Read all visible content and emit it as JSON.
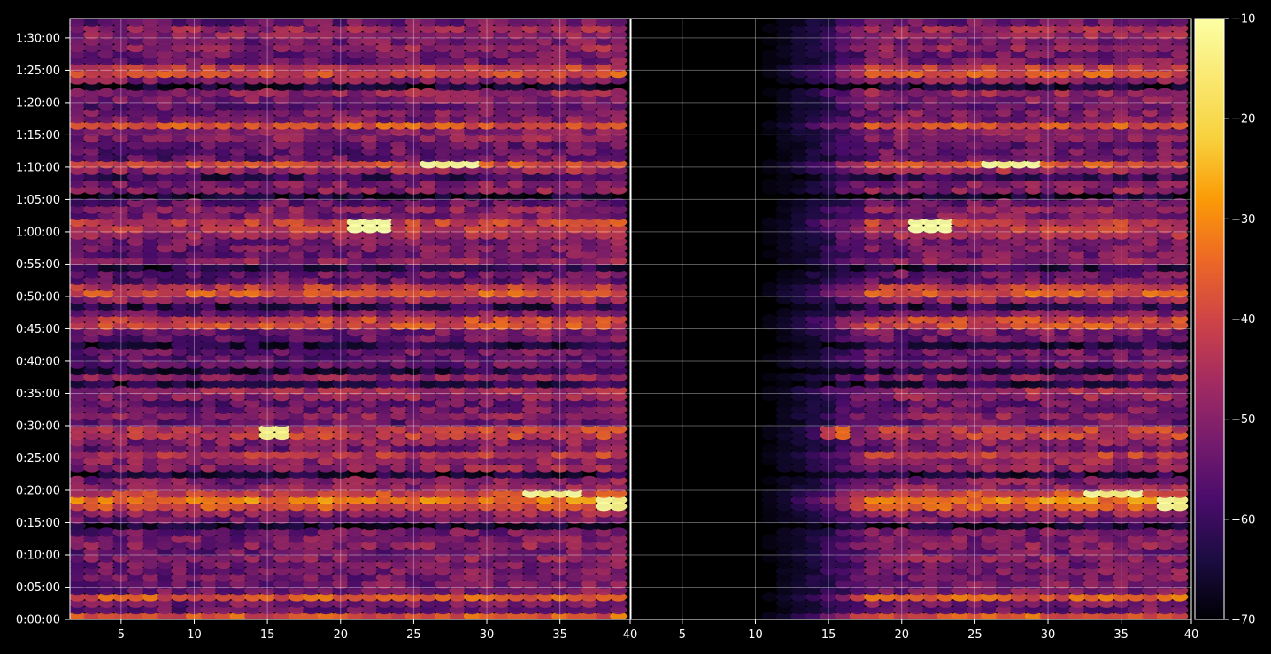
{
  "chart_data": {
    "type": "heatmap",
    "colormap": "inferno",
    "background": "#000000",
    "grid": true,
    "panels": [
      {
        "name": "left",
        "x_range": [
          1.5,
          39.8
        ],
        "x_ticks": [
          5,
          10,
          15,
          20,
          25,
          30,
          35
        ],
        "x_tick_labels": [
          "5",
          "10",
          "15",
          "20",
          "25",
          "30",
          "35"
        ]
      },
      {
        "name": "right",
        "x_range": [
          1.5,
          39.8
        ],
        "x_ticks": [
          5,
          10,
          15,
          20,
          25,
          30,
          35,
          40
        ],
        "x_tick_labels": [
          "5",
          "10",
          "15",
          "20",
          "25",
          "30",
          "35",
          "40"
        ],
        "empty_below_x_approx": 10,
        "fade_in_x_range": [
          10,
          18
        ]
      }
    ],
    "boundary_tick_label": "40",
    "y_range_seconds": [
      0,
      5580
    ],
    "y_ticks_seconds": [
      0,
      300,
      600,
      900,
      1200,
      1500,
      1800,
      2100,
      2400,
      2700,
      3000,
      3300,
      3600,
      3900,
      4200,
      4500,
      4800,
      5100,
      5400
    ],
    "y_tick_labels": [
      "0:00:00",
      "0:05:00",
      "0:10:00",
      "0:15:00",
      "0:20:00",
      "0:25:00",
      "0:30:00",
      "0:35:00",
      "0:40:00",
      "0:45:00",
      "0:50:00",
      "0:55:00",
      "1:00:00",
      "1:05:00",
      "1:10:00",
      "1:15:00",
      "1:20:00",
      "1:25:00",
      "1:30:00"
    ],
    "colorbar": {
      "range": [
        -70,
        -10
      ],
      "ticks": [
        -70,
        -60,
        -50,
        -40,
        -30,
        -20,
        -10
      ],
      "tick_labels": [
        "−70",
        "−60",
        "−50",
        "−40",
        "−30",
        "−20",
        "−10"
      ]
    },
    "rows": {
      "row_height_seconds": 60,
      "bright_bands_seconds": [
        30,
        200,
        1080,
        1150,
        1520,
        1740,
        2760,
        3060,
        3660,
        4230,
        4580,
        5100
      ],
      "dark_gaps_seconds": [
        120,
        480,
        860,
        1360,
        1620,
        2200,
        2320,
        2540,
        2900,
        3270,
        3480,
        3940,
        4120,
        4740,
        4930,
        5220
      ],
      "peaks": [
        {
          "x": 27.3,
          "t": 4230,
          "value": -15
        },
        {
          "x": 22.0,
          "t": 3660,
          "value": -18
        },
        {
          "x": 15.5,
          "t": 1740,
          "value": -22
        },
        {
          "x": 34.5,
          "t": 1150,
          "value": -20
        },
        {
          "x": 39.2,
          "t": 1080,
          "value": -22
        }
      ]
    }
  }
}
